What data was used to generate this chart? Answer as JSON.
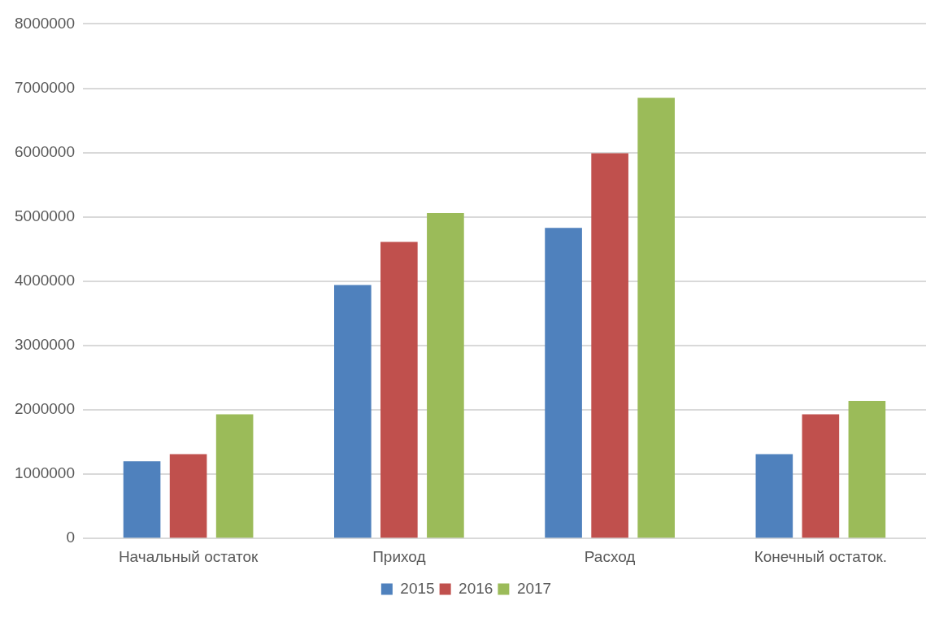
{
  "chart_data": {
    "type": "bar",
    "categories": [
      "Начальный остаток",
      "Приход",
      "Расход",
      "Конечный остаток."
    ],
    "series": [
      {
        "name": "2015",
        "color": "#4f81bd",
        "values": [
          1200000,
          3940000,
          4830000,
          1310000
        ]
      },
      {
        "name": "2016",
        "color": "#c0504d",
        "values": [
          1310000,
          4610000,
          5990000,
          1930000
        ]
      },
      {
        "name": "2017",
        "color": "#9bbb59",
        "values": [
          1930000,
          5060000,
          6850000,
          2140000
        ]
      }
    ],
    "ylim": [
      0,
      8000000
    ],
    "yticks": [
      0,
      1000000,
      2000000,
      3000000,
      4000000,
      5000000,
      6000000,
      7000000,
      8000000
    ],
    "grid": "y",
    "legend": "bottom"
  }
}
